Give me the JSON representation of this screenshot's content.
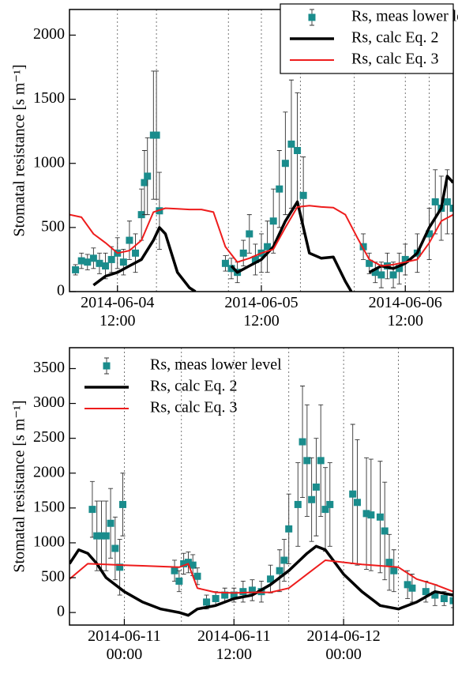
{
  "chart_data": [
    {
      "type": "line",
      "ylabel": "Stomatal resistance [s m⁻¹]",
      "xlim": [
        "2014-06-04 04:00",
        "2014-06-06 20:00"
      ],
      "xticks": [
        {
          "value": "2014-06-04 12:00",
          "label": "2014-06-04 12:00"
        },
        {
          "value": "2014-06-05 12:00",
          "label": "2014-06-05 12:00"
        },
        {
          "value": "2014-06-06 12:00",
          "label": "2014-06-06 12:00"
        }
      ],
      "ylim": [
        0,
        2200
      ],
      "yticks": [
        0,
        500,
        1000,
        1500,
        2000
      ],
      "vlines": [
        "2014-06-04 12:00",
        "2014-06-04 18:30",
        "2014-06-05 06:30",
        "2014-06-05 12:00",
        "2014-06-05 18:30",
        "2014-06-06 03:30",
        "2014-06-06 12:00",
        "2014-06-06 16:00"
      ],
      "legend": {
        "position": "upper right",
        "frame": true
      },
      "series": [
        {
          "name": "Rs, meas lower level",
          "type": "scatter",
          "color": "#1a8c8c",
          "x": [
            "2014-06-04 05:00",
            "2014-06-04 06:00",
            "2014-06-04 07:00",
            "2014-06-04 08:00",
            "2014-06-04 09:00",
            "2014-06-04 10:00",
            "2014-06-04 11:00",
            "2014-06-04 12:00",
            "2014-06-04 13:00",
            "2014-06-04 14:00",
            "2014-06-04 15:00",
            "2014-06-04 16:00",
            "2014-06-04 16:30",
            "2014-06-04 17:00",
            "2014-06-04 18:00",
            "2014-06-04 18:30",
            "2014-06-04 19:00",
            "2014-06-05 06:00",
            "2014-06-05 07:00",
            "2014-06-05 08:00",
            "2014-06-05 09:00",
            "2014-06-05 10:00",
            "2014-06-05 11:00",
            "2014-06-05 12:00",
            "2014-06-05 13:00",
            "2014-06-05 14:00",
            "2014-06-05 15:00",
            "2014-06-05 16:00",
            "2014-06-05 17:00",
            "2014-06-05 18:00",
            "2014-06-05 19:00",
            "2014-06-06 05:00",
            "2014-06-06 06:00",
            "2014-06-06 07:00",
            "2014-06-06 08:00",
            "2014-06-06 09:00",
            "2014-06-06 10:00",
            "2014-06-06 11:00",
            "2014-06-06 12:00",
            "2014-06-06 14:00",
            "2014-06-06 16:00",
            "2014-06-06 17:00",
            "2014-06-06 18:00",
            "2014-06-06 19:00",
            "2014-06-06 20:00"
          ],
          "values": [
            170,
            240,
            230,
            260,
            220,
            200,
            250,
            300,
            230,
            400,
            300,
            600,
            850,
            900,
            1220,
            1220,
            630,
            220,
            180,
            150,
            300,
            450,
            250,
            300,
            350,
            550,
            800,
            1000,
            1150,
            1100,
            750,
            350,
            220,
            150,
            130,
            200,
            130,
            180,
            250,
            300,
            450,
            700,
            650,
            700,
            650
          ],
          "errors": [
            40,
            60,
            60,
            80,
            80,
            100,
            100,
            120,
            100,
            150,
            150,
            200,
            250,
            300,
            500,
            500,
            300,
            60,
            80,
            80,
            100,
            150,
            120,
            150,
            200,
            250,
            300,
            400,
            500,
            450,
            300,
            100,
            80,
            80,
            100,
            100,
            100,
            120,
            120,
            150,
            200,
            250,
            250,
            250,
            200
          ]
        },
        {
          "name": "Rs, calc Eq. 2",
          "type": "line",
          "color": "#000000",
          "width": 3.5,
          "x": [
            "2014-06-04 08:00",
            "2014-06-04 10:00",
            "2014-06-04 12:00",
            "2014-06-04 14:00",
            "2014-06-04 16:00",
            "2014-06-04 18:00",
            "2014-06-04 19:00",
            "2014-06-04 20:00",
            "2014-06-04 22:00",
            "2014-06-05 00:00",
            "2014-06-05 01:00",
            "2014-06-05 04:00",
            "2014-06-05 07:00",
            "2014-06-05 08:00",
            "2014-06-05 10:00",
            "2014-06-05 12:00",
            "2014-06-05 14:00",
            "2014-06-05 16:00",
            "2014-06-05 18:00",
            "2014-06-05 20:00",
            "2014-06-05 22:00",
            "2014-06-06 00:00",
            "2014-06-06 02:00",
            "2014-06-06 03:00",
            "2014-06-06 04:00",
            "2014-06-06 06:00",
            "2014-06-06 08:00",
            "2014-06-06 10:00",
            "2014-06-06 12:00",
            "2014-06-06 14:00",
            "2014-06-06 16:00",
            "2014-06-06 18:00",
            "2014-06-06 19:00",
            "2014-06-06 20:00"
          ],
          "values": [
            50,
            120,
            150,
            200,
            250,
            400,
            500,
            450,
            150,
            30,
            0,
            null,
            200,
            150,
            200,
            250,
            350,
            550,
            700,
            300,
            260,
            270,
            80,
            0,
            null,
            150,
            200,
            180,
            220,
            300,
            500,
            650,
            900,
            850
          ]
        },
        {
          "name": "Rs, calc Eq. 3",
          "type": "line",
          "color": "#ee1c1c",
          "width": 2,
          "x": [
            "2014-06-04 04:00",
            "2014-06-04 06:00",
            "2014-06-04 08:00",
            "2014-06-04 10:00",
            "2014-06-04 12:00",
            "2014-06-04 14:00",
            "2014-06-04 16:00",
            "2014-06-04 18:00",
            "2014-06-04 20:00",
            "2014-06-04 22:00",
            "2014-06-05 00:00",
            "2014-06-05 02:00",
            "2014-06-05 04:00",
            "2014-06-05 06:00",
            "2014-06-05 08:00",
            "2014-06-05 10:00",
            "2014-06-05 12:00",
            "2014-06-05 14:00",
            "2014-06-05 16:00",
            "2014-06-05 18:00",
            "2014-06-05 20:00",
            "2014-06-05 22:00",
            "2014-06-06 00:00",
            "2014-06-06 02:00",
            "2014-06-06 04:00",
            "2014-06-06 06:00",
            "2014-06-06 08:00",
            "2014-06-06 10:00",
            "2014-06-06 12:00",
            "2014-06-06 14:00",
            "2014-06-06 16:00",
            "2014-06-06 18:00",
            "2014-06-06 20:00"
          ],
          "values": [
            600,
            580,
            450,
            380,
            300,
            320,
            400,
            620,
            650,
            645,
            640,
            640,
            620,
            350,
            230,
            260,
            300,
            330,
            500,
            660,
            670,
            660,
            655,
            600,
            420,
            250,
            200,
            210,
            230,
            250,
            380,
            550,
            600
          ]
        }
      ]
    },
    {
      "type": "line",
      "ylabel": "Stomatal resistance [s m⁻¹]",
      "xlim": [
        "2014-06-10 18:00",
        "2014-06-12 12:00"
      ],
      "xticks": [
        {
          "value": "2014-06-11 00:00",
          "label": "2014-06-11 00:00"
        },
        {
          "value": "2014-06-11 12:00",
          "label": "2014-06-11 12:00"
        },
        {
          "value": "2014-06-12 00:00",
          "label": "2014-06-12 00:00"
        }
      ],
      "ylim": [
        -180,
        3800
      ],
      "yticks": [
        0,
        500,
        1000,
        1500,
        2000,
        2500,
        3000,
        3500
      ],
      "vlines": [
        "2014-06-11 00:00",
        "2014-06-11 06:15",
        "2014-06-11 12:00",
        "2014-06-11 18:00",
        "2014-06-12 00:00",
        "2014-06-12 06:00"
      ],
      "legend": {
        "position": "upper left",
        "frame": false
      },
      "series": [
        {
          "name": "Rs, meas lower level",
          "type": "scatter",
          "color": "#1a8c8c",
          "x": [
            "2014-06-10 20:30",
            "2014-06-10 21:00",
            "2014-06-10 21:30",
            "2014-06-10 22:00",
            "2014-06-10 22:30",
            "2014-06-10 23:00",
            "2014-06-10 23:30",
            "2014-06-10 23:50",
            "2014-06-11 05:30",
            "2014-06-11 06:00",
            "2014-06-11 06:30",
            "2014-06-11 07:00",
            "2014-06-11 07:30",
            "2014-06-11 08:00",
            "2014-06-11 09:00",
            "2014-06-11 10:00",
            "2014-06-11 11:00",
            "2014-06-11 12:00",
            "2014-06-11 13:00",
            "2014-06-11 14:00",
            "2014-06-11 15:00",
            "2014-06-11 16:00",
            "2014-06-11 17:00",
            "2014-06-11 17:30",
            "2014-06-11 18:00",
            "2014-06-11 19:00",
            "2014-06-11 19:30",
            "2014-06-11 20:00",
            "2014-06-11 20:30",
            "2014-06-11 21:00",
            "2014-06-11 21:30",
            "2014-06-11 22:00",
            "2014-06-11 22:30",
            "2014-06-12 01:00",
            "2014-06-12 01:30",
            "2014-06-12 02:30",
            "2014-06-12 03:00",
            "2014-06-12 04:00",
            "2014-06-12 04:30",
            "2014-06-12 05:00",
            "2014-06-12 05:30",
            "2014-06-12 07:00",
            "2014-06-12 07:30",
            "2014-06-12 09:00",
            "2014-06-12 10:00",
            "2014-06-12 11:00",
            "2014-06-12 12:00"
          ],
          "values": [
            1480,
            1100,
            1100,
            1100,
            1280,
            920,
            650,
            1550,
            600,
            450,
            700,
            720,
            680,
            520,
            150,
            200,
            250,
            250,
            300,
            320,
            300,
            480,
            600,
            750,
            1200,
            1550,
            2450,
            2180,
            1620,
            1800,
            2180,
            1480,
            1550,
            1700,
            1580,
            1420,
            1400,
            1370,
            1170,
            720,
            600,
            400,
            350,
            300,
            250,
            200,
            170
          ],
          "errors": [
            400,
            500,
            500,
            500,
            500,
            450,
            400,
            450,
            150,
            150,
            150,
            150,
            150,
            120,
            100,
            100,
            100,
            100,
            150,
            150,
            150,
            200,
            300,
            300,
            500,
            600,
            800,
            800,
            600,
            700,
            800,
            600,
            600,
            1000,
            900,
            800,
            800,
            800,
            700,
            400,
            300,
            200,
            200,
            150,
            150,
            100,
            100
          ]
        },
        {
          "name": "Rs, calc Eq. 2",
          "type": "line",
          "color": "#000000",
          "width": 3.5,
          "x": [
            "2014-06-10 18:00",
            "2014-06-10 19:00",
            "2014-06-10 20:00",
            "2014-06-10 21:00",
            "2014-06-10 22:00",
            "2014-06-11 00:00",
            "2014-06-11 02:00",
            "2014-06-11 04:00",
            "2014-06-11 06:00",
            "2014-06-11 07:00",
            "2014-06-11 08:00",
            "2014-06-11 10:00",
            "2014-06-11 12:00",
            "2014-06-11 14:00",
            "2014-06-11 16:00",
            "2014-06-11 18:00",
            "2014-06-11 20:00",
            "2014-06-11 21:00",
            "2014-06-11 22:00",
            "2014-06-12 00:00",
            "2014-06-12 02:00",
            "2014-06-12 04:00",
            "2014-06-12 06:00",
            "2014-06-12 08:00",
            "2014-06-12 10:00",
            "2014-06-12 12:00"
          ],
          "values": [
            700,
            900,
            850,
            700,
            500,
            300,
            150,
            50,
            0,
            -40,
            50,
            100,
            200,
            250,
            400,
            600,
            850,
            950,
            900,
            550,
            300,
            100,
            50,
            150,
            300,
            250
          ]
        },
        {
          "name": "Rs, calc Eq. 3",
          "type": "line",
          "color": "#ee1c1c",
          "width": 2,
          "x": [
            "2014-06-10 18:00",
            "2014-06-10 20:00",
            "2014-06-10 22:00",
            "2014-06-11 00:00",
            "2014-06-11 02:00",
            "2014-06-11 04:00",
            "2014-06-11 06:00",
            "2014-06-11 07:00",
            "2014-06-11 08:00",
            "2014-06-11 10:00",
            "2014-06-11 12:00",
            "2014-06-11 14:00",
            "2014-06-11 16:00",
            "2014-06-11 18:00",
            "2014-06-11 20:00",
            "2014-06-11 22:00",
            "2014-06-12 00:00",
            "2014-06-12 02:00",
            "2014-06-12 04:00",
            "2014-06-12 06:00",
            "2014-06-12 08:00",
            "2014-06-12 10:00",
            "2014-06-12 12:00"
          ],
          "values": [
            480,
            700,
            690,
            680,
            670,
            660,
            650,
            700,
            350,
            290,
            280,
            290,
            290,
            350,
            550,
            750,
            720,
            690,
            670,
            650,
            480,
            400,
            300
          ]
        }
      ]
    }
  ]
}
